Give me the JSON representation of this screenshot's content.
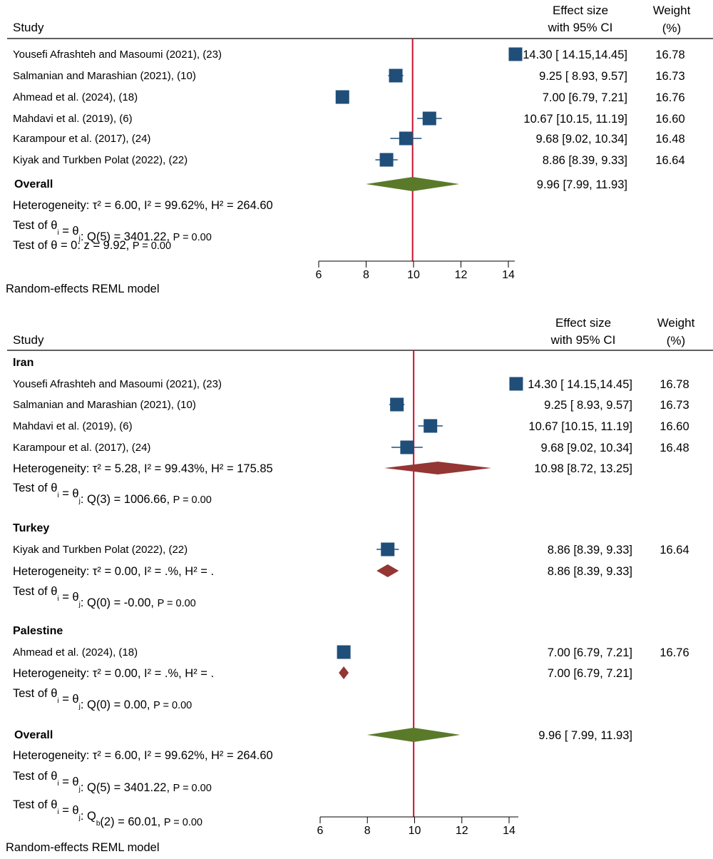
{
  "colors": {
    "marker": "#1f4e79",
    "subgroup_diamond": "#943634",
    "overall_diamond": "#5a7a2a",
    "reference_line": "#c8102e"
  },
  "chart_data": [
    {
      "type": "forest",
      "headers": {
        "study": "Study",
        "effect_line1": "Effect size",
        "effect_line2": "with 95% CI",
        "weight_line1": "Weight",
        "weight_line2": "(%)"
      },
      "xlim": [
        6,
        14
      ],
      "xticks": [
        "6",
        "8",
        "10",
        "12",
        "14"
      ],
      "reference_value": 9.96,
      "rows": [
        {
          "kind": "study",
          "label": "Yousefi Afrashteh and Masoumi (2021), (23)",
          "est": 14.3,
          "lo": 14.15,
          "hi": 14.45,
          "ci_text": "14.30 [ 14.15,14.45]",
          "weight": "16.78"
        },
        {
          "kind": "study",
          "label": "Salmanian and Marashian (2021), (10)",
          "est": 9.25,
          "lo": 8.93,
          "hi": 9.57,
          "ci_text": "9.25 [ 8.93, 9.57]",
          "weight": "16.73"
        },
        {
          "kind": "study",
          "label": "Ahmead et al. (2024), (18)",
          "est": 7.0,
          "lo": 6.79,
          "hi": 7.21,
          "ci_text": "7.00 [6.79, 7.21]",
          "weight": "16.76"
        },
        {
          "kind": "study",
          "label": "Mahdavi et al. (2019), (6)",
          "est": 10.67,
          "lo": 10.15,
          "hi": 11.19,
          "ci_text": "10.67 [10.15, 11.19]",
          "weight": "16.60"
        },
        {
          "kind": "study",
          "label": "Karampour et al. (2017), (24)",
          "est": 9.68,
          "lo": 9.02,
          "hi": 10.34,
          "ci_text": "9.68 [9.02, 10.34]",
          "weight": "16.48"
        },
        {
          "kind": "study",
          "label": "Kiyak and Turkben Polat (2022), (22)",
          "est": 8.86,
          "lo": 8.39,
          "hi": 9.33,
          "ci_text": "8.86 [8.39, 9.33]",
          "weight": "16.64"
        },
        {
          "kind": "overall",
          "label": "Overall",
          "est": 9.96,
          "lo": 7.99,
          "hi": 11.93,
          "ci_text": "9.96 [7.99, 11.93]"
        },
        {
          "kind": "stat",
          "text": "Heterogeneity: τ² = 6.00, I² = 99.62%, H² = 264.60"
        },
        {
          "kind": "test",
          "pre": "Test of θ",
          "sub1": "i",
          "mid": " = θ",
          "sub2": "j",
          "post": ": Q(5) = 3401.22, ",
          "p": "P = 0.00"
        },
        {
          "kind": "test",
          "pre": "Test of θ = 0: z = 9.92, ",
          "sub1": "",
          "mid": "",
          "sub2": "",
          "post": "",
          "p": "P = 0.00"
        }
      ],
      "footer": "Random-effects REML model"
    },
    {
      "type": "forest",
      "headers": {
        "study": "Study",
        "effect_line1": "Effect size",
        "effect_line2": "with 95% CI",
        "weight_line1": "Weight",
        "weight_line2": "(%)"
      },
      "xlim": [
        6,
        14
      ],
      "xticks": [
        "6",
        "8",
        "10",
        "12",
        "14"
      ],
      "reference_value": 9.96,
      "rows": [
        {
          "kind": "group",
          "label": "Iran"
        },
        {
          "kind": "study",
          "label": "Yousefi Afrashteh and Masoumi (2021), (23)",
          "est": 14.3,
          "lo": 14.15,
          "hi": 14.45,
          "ci_text": "14.30 [ 14.15,14.45]",
          "weight": "16.78"
        },
        {
          "kind": "study",
          "label": "Salmanian and Marashian (2021), (10)",
          "est": 9.25,
          "lo": 8.93,
          "hi": 9.57,
          "ci_text": "9.25 [ 8.93, 9.57]",
          "weight": "16.73"
        },
        {
          "kind": "study",
          "label": "Mahdavi et al. (2019), (6)",
          "est": 10.67,
          "lo": 10.15,
          "hi": 11.19,
          "ci_text": "10.67 [10.15, 11.19]",
          "weight": "16.60"
        },
        {
          "kind": "study",
          "label": "Karampour et al. (2017), (24)",
          "est": 9.68,
          "lo": 9.02,
          "hi": 10.34,
          "ci_text": "9.68 [9.02, 10.34]",
          "weight": "16.48"
        },
        {
          "kind": "subgroup",
          "label": "Heterogeneity: τ² = 5.28, I² = 99.43%, H² = 175.85",
          "est": 10.98,
          "lo": 8.72,
          "hi": 13.25,
          "ci_text": "10.98 [8.72, 13.25]"
        },
        {
          "kind": "test",
          "pre": "Test of θ",
          "sub1": "i",
          "mid": " = θ",
          "sub2": "j",
          "post": ": Q(3) = 1006.66, ",
          "p": "P = 0.00"
        },
        {
          "kind": "group",
          "label": "Turkey"
        },
        {
          "kind": "study",
          "label": "Kiyak and Turkben Polat (2022), (22)",
          "est": 8.86,
          "lo": 8.39,
          "hi": 9.33,
          "ci_text": "8.86 [8.39, 9.33]",
          "weight": "16.64"
        },
        {
          "kind": "subgroup",
          "label": "Heterogeneity: τ² = 0.00, I² = .%, H² = .",
          "est": 8.86,
          "lo": 8.39,
          "hi": 9.33,
          "ci_text": "8.86 [8.39, 9.33]"
        },
        {
          "kind": "test",
          "pre": "Test of θ",
          "sub1": "i",
          "mid": " = θ",
          "sub2": "j",
          "post": ": Q(0) = -0.00, ",
          "p": "P = 0.00"
        },
        {
          "kind": "group",
          "label": "Palestine"
        },
        {
          "kind": "study",
          "label": "Ahmead et al. (2024), (18)",
          "est": 7.0,
          "lo": 6.79,
          "hi": 7.21,
          "ci_text": "7.00 [6.79, 7.21]",
          "weight": "16.76"
        },
        {
          "kind": "subgroup",
          "label": "Heterogeneity: τ² = 0.00, I² = .%, H² = .",
          "est": 7.0,
          "lo": 6.79,
          "hi": 7.21,
          "ci_text": "7.00 [6.79, 7.21]"
        },
        {
          "kind": "test",
          "pre": "Test of θ",
          "sub1": "i",
          "mid": " = θ",
          "sub2": "j",
          "post": ": Q(0) = 0.00, ",
          "p": "P = 0.00"
        },
        {
          "kind": "overall",
          "label": "Overall",
          "est": 9.96,
          "lo": 7.99,
          "hi": 11.93,
          "ci_text": "9.96 [ 7.99, 11.93]"
        },
        {
          "kind": "stat",
          "text": "Heterogeneity: τ² = 6.00, I² = 99.62%, H² = 264.60"
        },
        {
          "kind": "test",
          "pre": "Test of θ",
          "sub1": "i",
          "mid": " = θ",
          "sub2": "j",
          "post": ": Q(5) = 3401.22, ",
          "p": "P = 0.00"
        },
        {
          "kind": "testb",
          "pre": "Test of θ",
          "sub1": "i",
          "mid": " = θ",
          "sub2": "j",
          "post": ": Q",
          "sub3": "b",
          "post2": "(2) = 60.01, ",
          "p": "P = 0.00"
        }
      ],
      "footer": "Random-effects REML model"
    }
  ]
}
